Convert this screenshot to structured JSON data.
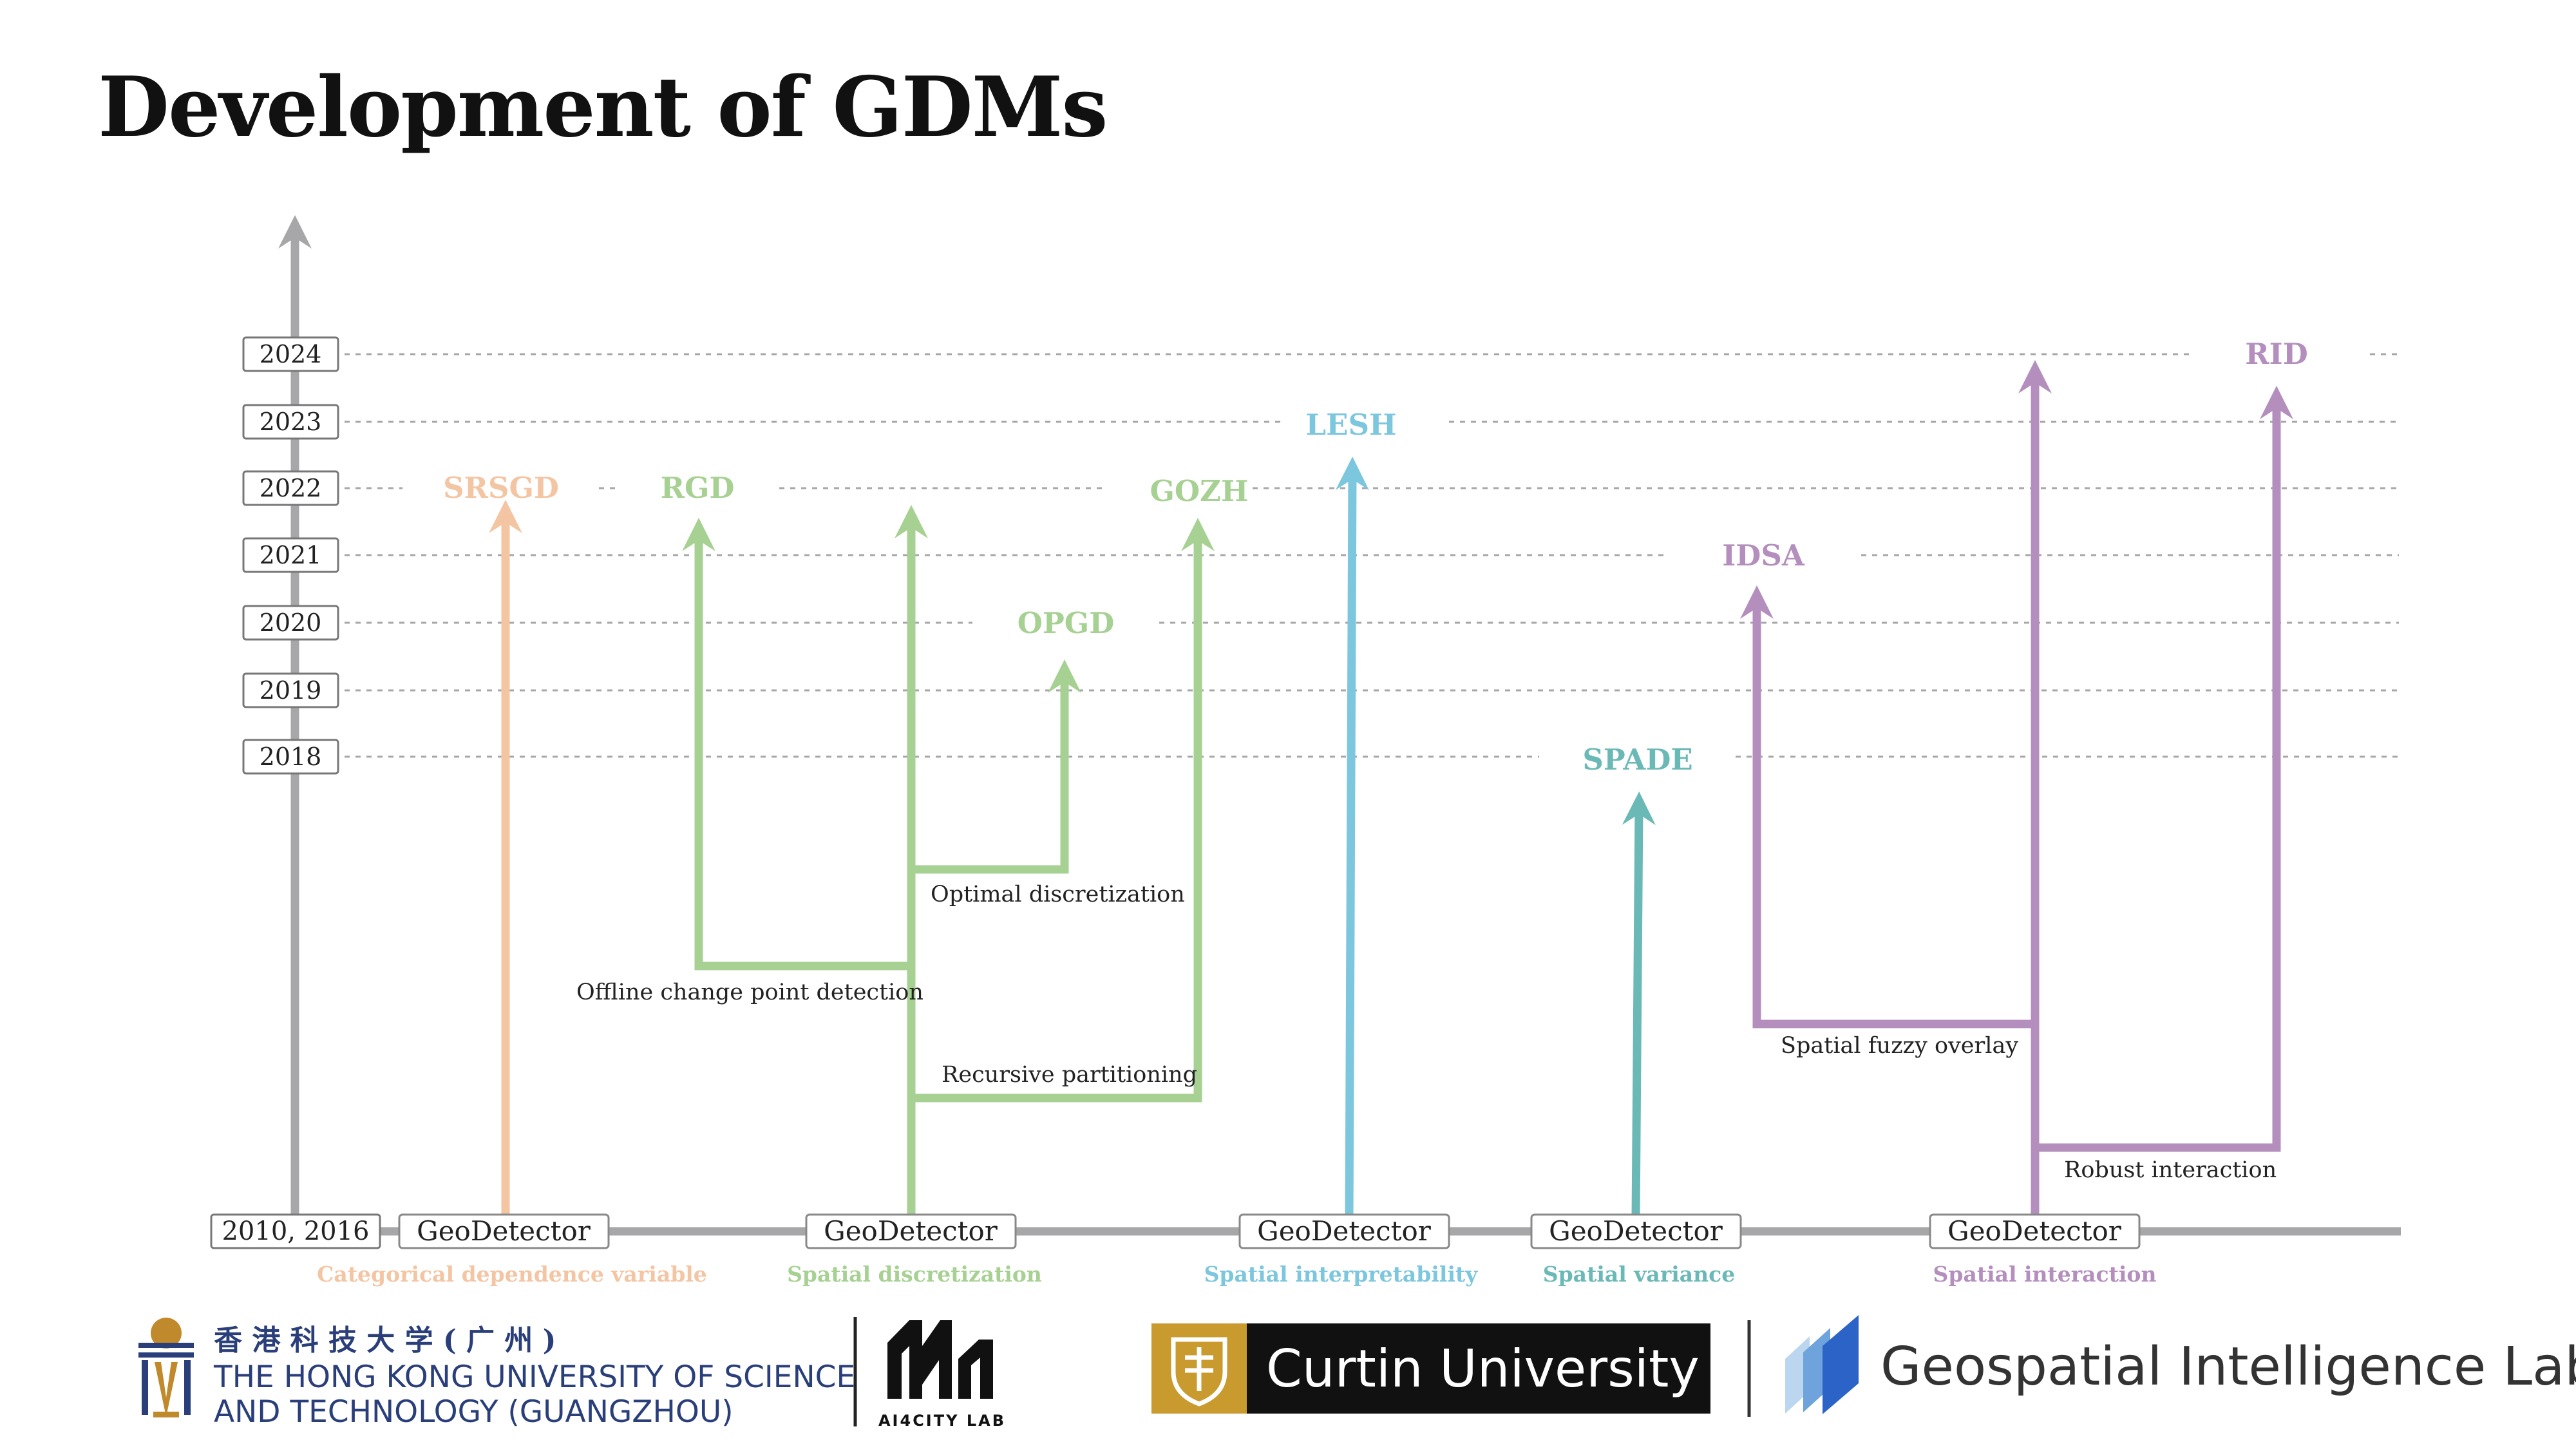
{
  "title": "Development of GDMs",
  "colors": {
    "axis": "#a7a7a9",
    "categorical": "#f4c5a3",
    "discretization": "#a7d193",
    "interpretability": "#7cc6de",
    "variance": "#6bb9b6",
    "interaction": "#b48fbd"
  },
  "timeline": {
    "years": [
      "2024",
      "2023",
      "2022",
      "2021",
      "2020",
      "2019",
      "2018"
    ],
    "origin_label": "2010, 2016"
  },
  "nodes": [
    "GeoDetector",
    "GeoDetector",
    "GeoDetector",
    "GeoDetector",
    "GeoDetector"
  ],
  "categories": [
    "Categorical dependence variable",
    "Spatial discretization",
    "Spatial interpretability",
    "Spatial variance",
    "Spatial interaction"
  ],
  "methods": {
    "srsgd": "SRSGD",
    "rgd": "RGD",
    "opgd": "OPGD",
    "gozh": "GOZH",
    "lesh": "LESH",
    "spade": "SPADE",
    "idsa": "IDSA",
    "rid": "RID"
  },
  "branches": {
    "optimal": "Optimal discretization",
    "offline": "Offline change point detection",
    "recursive": "Recursive partitioning",
    "fuzzy": "Spatial fuzzy overlay",
    "robust": "Robust interaction"
  },
  "footer": {
    "hkust_chinese": "香 港 科 技 大 学 ( 广 州 )",
    "hkust_line1": "THE HONG KONG UNIVERSITY OF SCIENCE",
    "hkust_line2": "AND TECHNOLOGY (GUANGZHOU)",
    "ai4city_label": "AI4CITY LAB",
    "curtin": "Curtin University",
    "gil": "Geospatial Intelligence Lab"
  }
}
